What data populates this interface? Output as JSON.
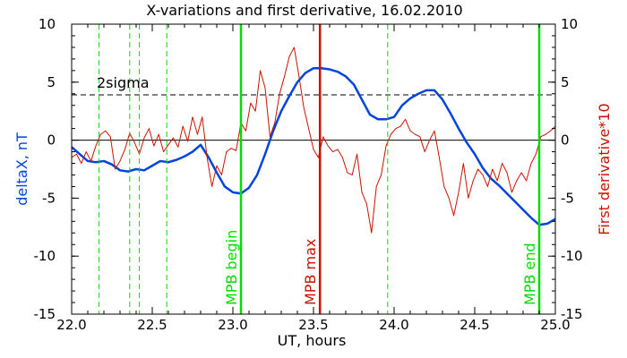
{
  "chart_data": {
    "type": "line",
    "title": "X-variations and first derivative, 16.02.2010",
    "xlabel": "UT, hours",
    "ylabel_left": "deltaX, nT",
    "ylabel_right": "First derivative*10",
    "xlim": [
      22.0,
      25.0
    ],
    "ylim_left": [
      -15,
      10
    ],
    "ylim_right": [
      -15,
      10
    ],
    "xticks": [
      "22.0",
      "22.5",
      "23.0",
      "23.5",
      "24.0",
      "24.5",
      "25.0"
    ],
    "yticks_left": [
      "-15",
      "-10",
      "-5",
      "0",
      "5",
      "10"
    ],
    "yticks_right": [
      "-15",
      "-10",
      "-5",
      "0",
      "5",
      "10"
    ],
    "colors": {
      "deltaX": "#0044dd",
      "derivative": "#cc1100",
      "mpb_lines": "#00dd00",
      "mpb_max_line": "#cc1100",
      "ylabel_left": "#0044dd",
      "ylabel_right": "#cc1100"
    },
    "threshold": {
      "label": "2sigma",
      "value": 3.9
    },
    "zero_line": 0,
    "vertical_markers": [
      {
        "x": 23.05,
        "label": "MPB begin",
        "style": "solid",
        "color": "#00dd00"
      },
      {
        "x": 23.54,
        "label": "MPB max",
        "style": "solid",
        "color": "#cc1100"
      },
      {
        "x": 24.9,
        "label": "MPB end",
        "style": "solid",
        "color": "#00dd00"
      },
      {
        "x": 22.17,
        "label": "",
        "style": "dashed",
        "color": "#00dd00"
      },
      {
        "x": 22.36,
        "label": "",
        "style": "dashed",
        "color": "#00dd00"
      },
      {
        "x": 22.42,
        "label": "",
        "style": "dashed",
        "color": "#00dd00"
      },
      {
        "x": 22.59,
        "label": "",
        "style": "dashed",
        "color": "#00dd00"
      },
      {
        "x": 23.96,
        "label": "",
        "style": "dashed",
        "color": "#00dd00"
      }
    ],
    "series": [
      {
        "key": "deltaX",
        "axis": "left",
        "color": "#0044dd",
        "x": [
          22.0,
          22.05,
          22.1,
          22.15,
          22.2,
          22.25,
          22.3,
          22.35,
          22.4,
          22.45,
          22.5,
          22.55,
          22.6,
          22.65,
          22.7,
          22.75,
          22.8,
          22.85,
          22.9,
          22.95,
          23.0,
          23.05,
          23.1,
          23.15,
          23.2,
          23.25,
          23.3,
          23.35,
          23.4,
          23.45,
          23.5,
          23.55,
          23.6,
          23.65,
          23.7,
          23.75,
          23.8,
          23.85,
          23.9,
          23.95,
          24.0,
          24.05,
          24.1,
          24.15,
          24.2,
          24.25,
          24.3,
          24.35,
          24.4,
          24.45,
          24.5,
          24.55,
          24.6,
          24.65,
          24.7,
          24.75,
          24.8,
          24.85,
          24.9,
          24.95,
          25.0
        ],
        "values": [
          -0.6,
          -1.2,
          -1.8,
          -1.9,
          -1.8,
          -2.1,
          -2.6,
          -2.7,
          -2.5,
          -2.6,
          -2.2,
          -1.8,
          -1.9,
          -1.7,
          -1.4,
          -1.0,
          -0.4,
          -1.5,
          -2.8,
          -4.0,
          -4.5,
          -4.6,
          -4.1,
          -3.0,
          -1.2,
          0.8,
          2.5,
          3.8,
          5.0,
          5.8,
          6.2,
          6.2,
          6.1,
          5.9,
          5.5,
          4.8,
          3.5,
          2.2,
          1.8,
          1.8,
          2.0,
          3.0,
          3.6,
          4.0,
          4.3,
          4.3,
          3.5,
          2.3,
          1.0,
          -0.2,
          -1.2,
          -2.4,
          -3.3,
          -3.9,
          -4.6,
          -5.3,
          -6.0,
          -6.7,
          -7.3,
          -7.2,
          -6.8
        ]
      },
      {
        "key": "derivative",
        "axis": "right",
        "color": "#cc1100",
        "x": [
          22.0,
          22.03,
          22.06,
          22.09,
          22.12,
          22.15,
          22.18,
          22.21,
          22.24,
          22.27,
          22.3,
          22.33,
          22.36,
          22.39,
          22.42,
          22.45,
          22.48,
          22.51,
          22.54,
          22.57,
          22.6,
          22.63,
          22.66,
          22.69,
          22.72,
          22.75,
          22.78,
          22.81,
          22.84,
          22.87,
          22.9,
          22.93,
          22.96,
          22.99,
          23.02,
          23.05,
          23.08,
          23.11,
          23.14,
          23.17,
          23.2,
          23.23,
          23.26,
          23.29,
          23.32,
          23.35,
          23.38,
          23.41,
          23.44,
          23.47,
          23.5,
          23.53,
          23.56,
          23.59,
          23.62,
          23.65,
          23.68,
          23.71,
          23.74,
          23.77,
          23.8,
          23.83,
          23.86,
          23.89,
          23.92,
          23.95,
          23.98,
          24.01,
          24.04,
          24.07,
          24.1,
          24.13,
          24.16,
          24.19,
          24.22,
          24.25,
          24.28,
          24.31,
          24.34,
          24.37,
          24.4,
          24.43,
          24.46,
          24.49,
          24.52,
          24.55,
          24.58,
          24.61,
          24.64,
          24.67,
          24.7,
          24.73,
          24.76,
          24.79,
          24.82,
          24.85,
          24.88,
          24.91,
          24.94,
          24.97,
          25.0
        ],
        "values": [
          -1.5,
          -1.2,
          -2.0,
          -1.0,
          -1.8,
          -0.5,
          0.5,
          0.8,
          0.3,
          -2.5,
          -1.8,
          -0.8,
          0.6,
          -0.2,
          -1.2,
          0.2,
          1.0,
          -0.5,
          0.5,
          -1.0,
          -0.4,
          0.2,
          -0.6,
          1.2,
          -0.1,
          2.0,
          0.5,
          2.0,
          -1.5,
          -4.0,
          -2.2,
          -3.0,
          -1.0,
          -0.7,
          -0.9,
          1.5,
          0.8,
          3.2,
          2.5,
          6.0,
          4.5,
          0.3,
          1.5,
          4.0,
          5.5,
          7.2,
          8.0,
          5.5,
          2.8,
          1.0,
          -0.8,
          -1.5,
          0.3,
          -0.5,
          -1.0,
          -0.8,
          -1.5,
          -2.8,
          -3.0,
          -1.2,
          -4.5,
          -5.5,
          -8.0,
          -4.0,
          -3.0,
          -0.5,
          0.5,
          1.0,
          1.2,
          1.8,
          0.8,
          0.5,
          0.3,
          -1.0,
          0.0,
          0.8,
          -1.5,
          -4.0,
          -5.0,
          -6.5,
          -4.5,
          -2.0,
          -5.0,
          -3.5,
          -2.5,
          -3.0,
          -4.0,
          -2.5,
          -3.5,
          -2.0,
          -2.8,
          -4.5,
          -3.5,
          -2.8,
          -3.5,
          -2.0,
          -1.2,
          0.3,
          0.5,
          0.8,
          1.2
        ]
      }
    ]
  }
}
